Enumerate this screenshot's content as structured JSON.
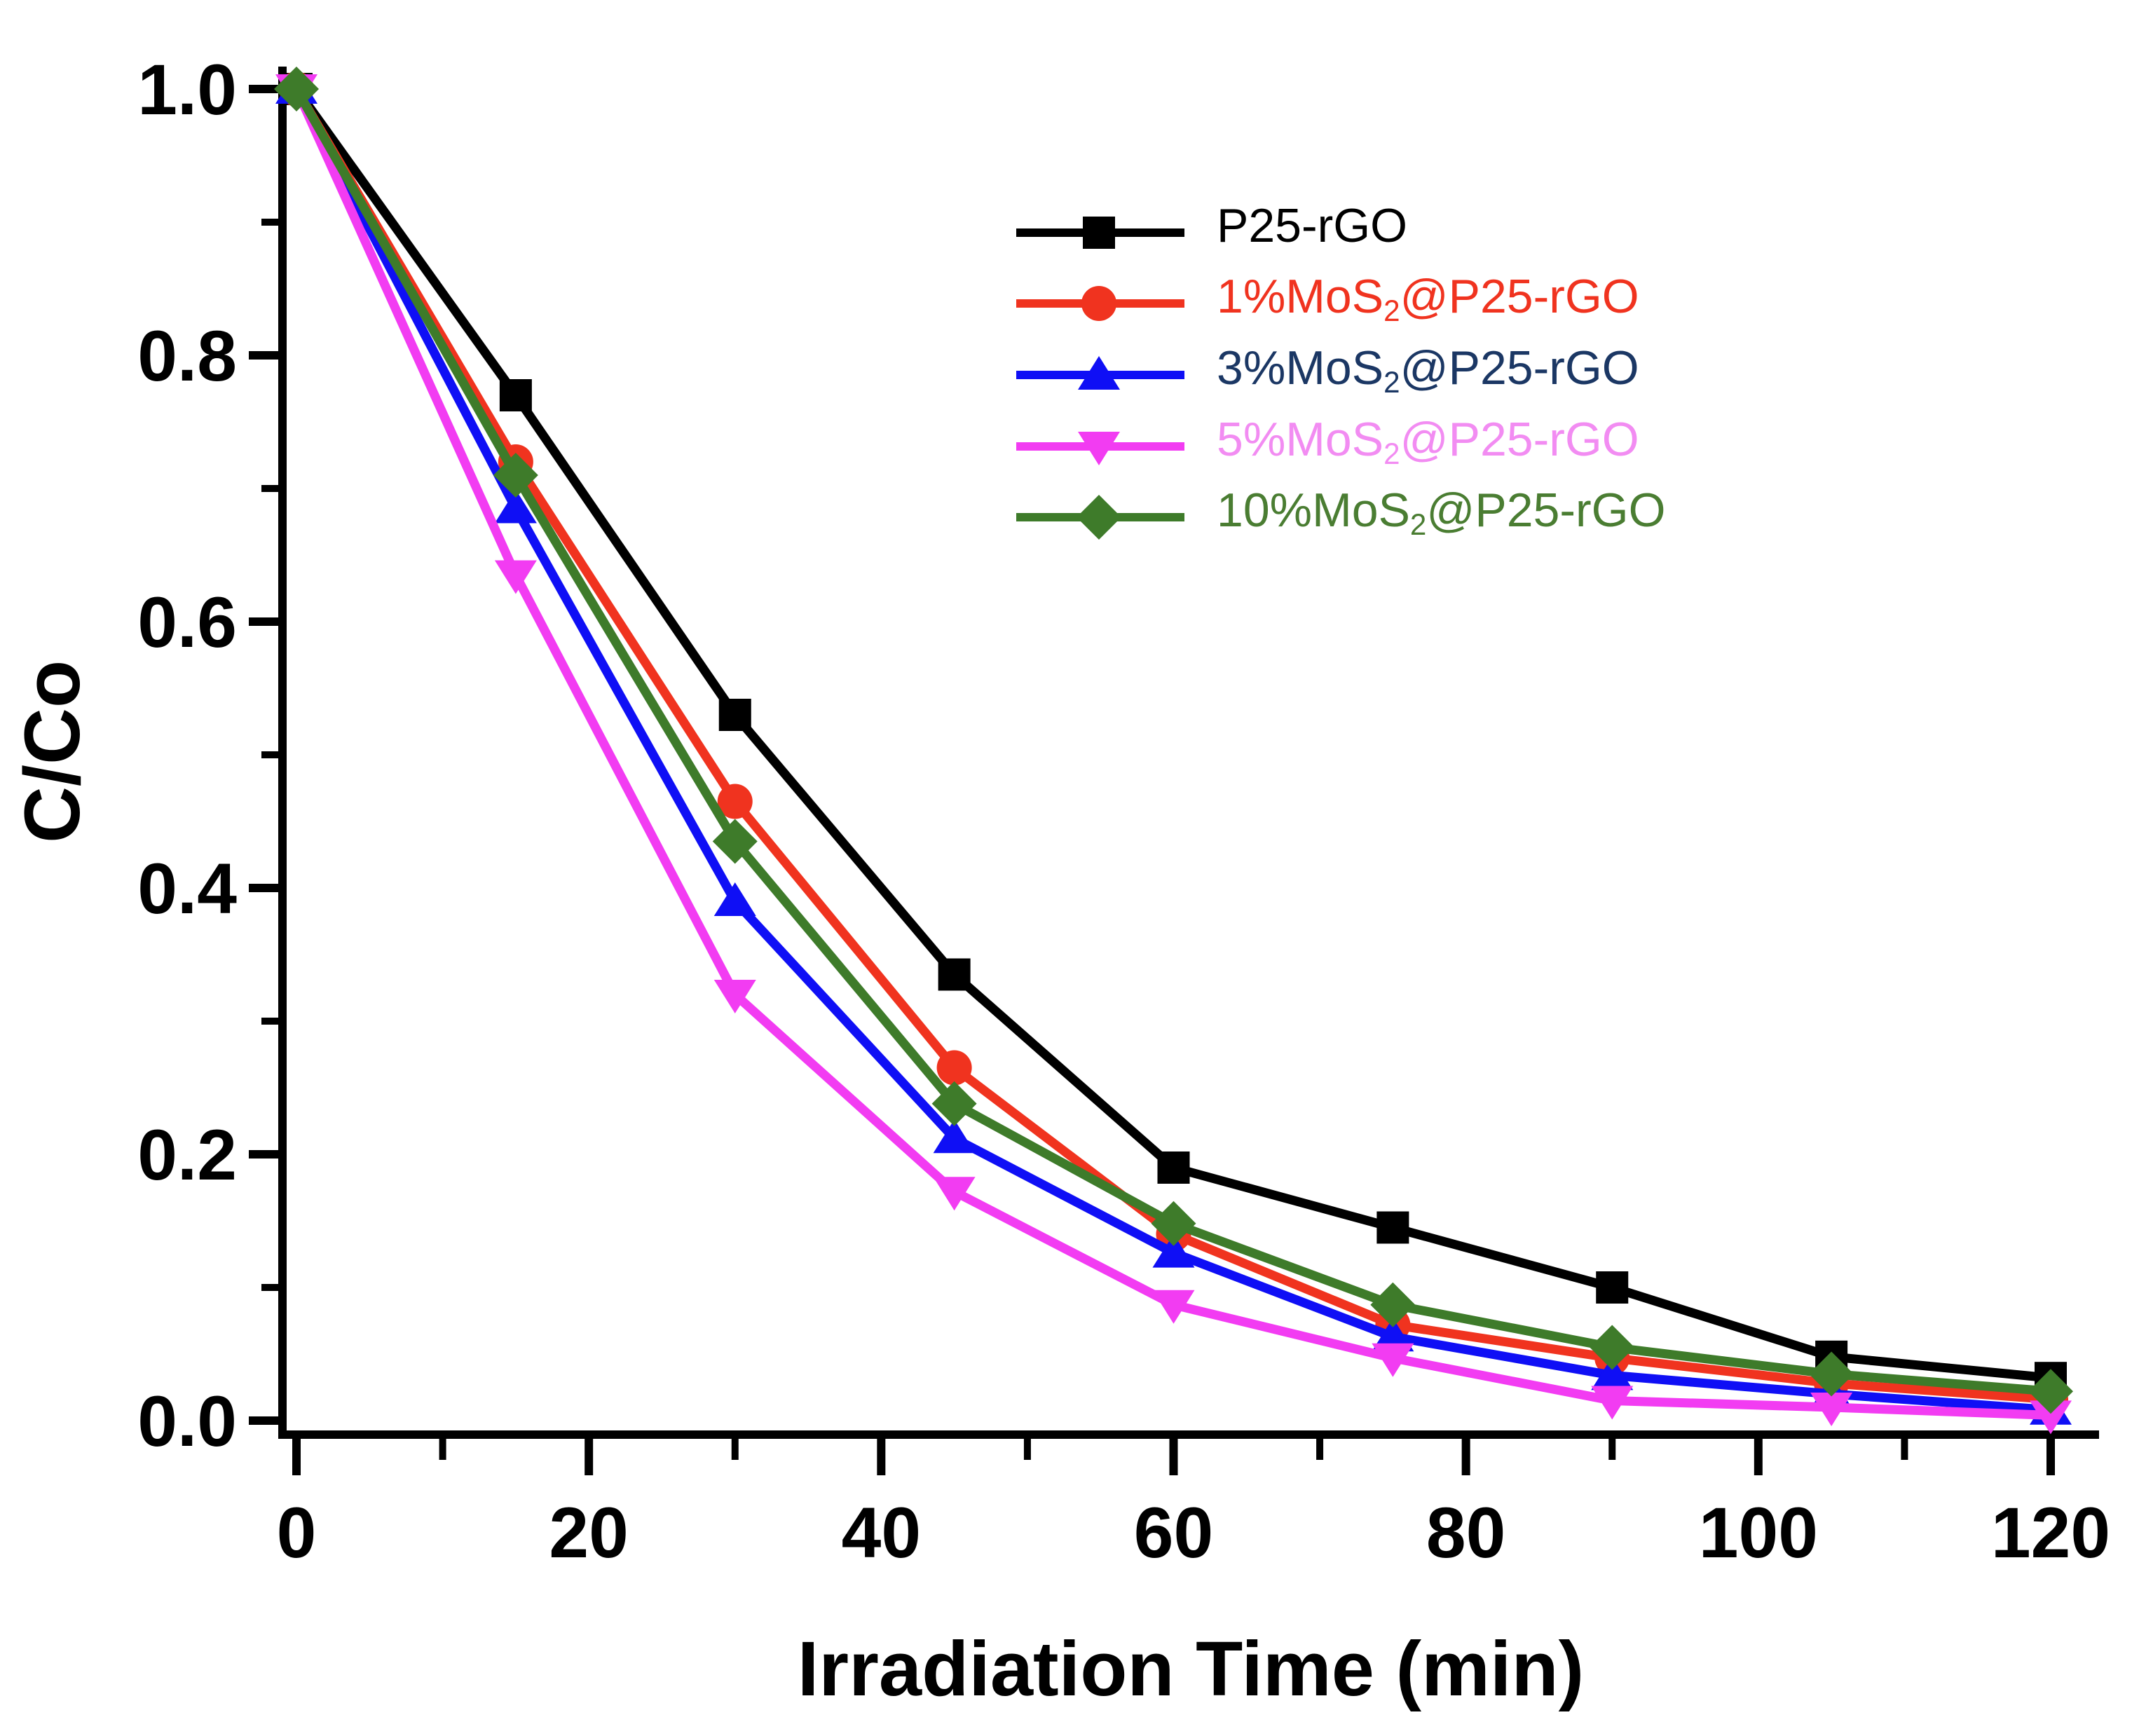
{
  "page": {
    "background": "#ffffff",
    "frame": "L-shaped axes, no gridlines, no title"
  },
  "chart_data": {
    "type": "line",
    "title": "",
    "xlabel": "Irradiation Time (min)",
    "ylabel": "C/Co",
    "grid": false,
    "legend_position": "upper-right-inside",
    "xlim": [
      0,
      120
    ],
    "ylim": [
      0.0,
      1.0
    ],
    "x": [
      0,
      15,
      30,
      45,
      60,
      75,
      90,
      105,
      120
    ],
    "x_ticks": [
      0,
      20,
      40,
      60,
      80,
      100,
      120
    ],
    "x_tick_labels": [
      "0",
      "20",
      "40",
      "60",
      "80",
      "100",
      "120"
    ],
    "x_minor_ticks": [
      10,
      30,
      50,
      70,
      90,
      110
    ],
    "y_ticks": [
      0.0,
      0.2,
      0.4,
      0.6,
      0.8,
      1.0
    ],
    "y_tick_labels": [
      "0.0",
      "0.2",
      "0.4",
      "0.6",
      "0.8",
      "1.0"
    ],
    "y_minor_ticks": [
      0.1,
      0.3,
      0.5,
      0.7,
      0.9
    ],
    "axis_color": "#000000",
    "series": [
      {
        "name": "P25-rGO",
        "legend_pre": "P25-rGO",
        "legend_sub": "",
        "legend_post": "",
        "marker": "square",
        "color": "#000000",
        "label_color": "#000000",
        "values": [
          1.0,
          0.77,
          0.53,
          0.335,
          0.19,
          0.145,
          0.1,
          0.048,
          0.032
        ]
      },
      {
        "name": "1%MoS2@P25-rGO",
        "legend_pre": "1%MoS",
        "legend_sub": "2",
        "legend_post": "@P25-rGO",
        "marker": "circle",
        "color": "#f0331f",
        "label_color": "#f0331f",
        "values": [
          1.0,
          0.72,
          0.465,
          0.265,
          0.14,
          0.072,
          0.047,
          0.028,
          0.016
        ]
      },
      {
        "name": "3%MoS2@P25-rGO",
        "legend_pre": "3%MoS",
        "legend_sub": "2",
        "legend_post": "@P25-rGO",
        "marker": "triangle-up",
        "color": "#0f0ff5",
        "label_color": "#1b3764",
        "values": [
          1.0,
          0.685,
          0.39,
          0.212,
          0.126,
          0.063,
          0.034,
          0.02,
          0.008
        ]
      },
      {
        "name": "5%MoS2@P25-rGO",
        "legend_pre": "5%MoS",
        "legend_sub": "2",
        "legend_post": "@P25-rGO",
        "marker": "triangle-down",
        "color": "#f23cf2",
        "label_color": "#f28cf2",
        "values": [
          1.0,
          0.635,
          0.32,
          0.172,
          0.087,
          0.047,
          0.015,
          0.01,
          0.004
        ]
      },
      {
        "name": "10%MoS2@P25-rGO",
        "legend_pre": "10%MoS",
        "legend_sub": "2",
        "legend_post": "@P25-rGO",
        "marker": "diamond",
        "color": "#3e7b2a",
        "label_color": "#4a7d32",
        "values": [
          1.0,
          0.71,
          0.435,
          0.238,
          0.148,
          0.087,
          0.055,
          0.035,
          0.022
        ]
      }
    ]
  }
}
